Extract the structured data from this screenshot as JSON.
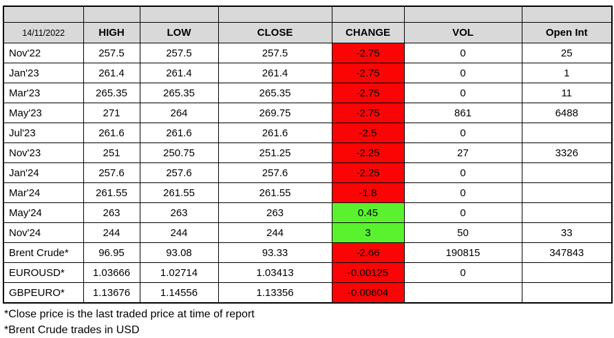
{
  "table": {
    "date": "14/11/2022",
    "columns": [
      "HIGH",
      "LOW",
      "CLOSE",
      "CHANGE",
      "VOL",
      "Open Int"
    ],
    "rows": [
      {
        "label": "Nov'22",
        "high": "257.5",
        "low": "257.5",
        "close": "257.5",
        "change": "-2.75",
        "vol": "0",
        "open_int": "25"
      },
      {
        "label": "Jan'23",
        "high": "261.4",
        "low": "261.4",
        "close": "261.4",
        "change": "-2.75",
        "vol": "0",
        "open_int": "1"
      },
      {
        "label": "Mar'23",
        "high": "265.35",
        "low": "265.35",
        "close": "265.35",
        "change": "-2.75",
        "vol": "0",
        "open_int": "11"
      },
      {
        "label": "May'23",
        "high": "271",
        "low": "264",
        "close": "269.75",
        "change": "-2.75",
        "vol": "861",
        "open_int": "6488"
      },
      {
        "label": "Jul'23",
        "high": "261.6",
        "low": "261.6",
        "close": "261.6",
        "change": "-2.5",
        "vol": "0",
        "open_int": ""
      },
      {
        "label": "Nov'23",
        "high": "251",
        "low": "250.75",
        "close": "251.25",
        "change": "-2.25",
        "vol": "27",
        "open_int": "3326"
      },
      {
        "label": "Jan'24",
        "high": "257.6",
        "low": "257.6",
        "close": "257.6",
        "change": "-2.25",
        "vol": "0",
        "open_int": ""
      },
      {
        "label": "Mar'24",
        "high": "261.55",
        "low": "261.55",
        "close": "261.55",
        "change": "-1.8",
        "vol": "0",
        "open_int": ""
      },
      {
        "label": "May'24",
        "high": "263",
        "low": "263",
        "close": "263",
        "change": "0.45",
        "vol": "0",
        "open_int": ""
      },
      {
        "label": "Nov'24",
        "high": "244",
        "low": "244",
        "close": "244",
        "change": "3",
        "vol": "50",
        "open_int": "33"
      },
      {
        "label": "Brent Crude*",
        "high": "96.95",
        "low": "93.08",
        "close": "93.33",
        "change": "-2.66",
        "vol": "190815",
        "open_int": "347843"
      },
      {
        "label": "EUROUSD*",
        "high": "1.03666",
        "low": "1.02714",
        "close": "1.03413",
        "change": "-0.00125",
        "vol": "0",
        "open_int": ""
      },
      {
        "label": "GBPEURO*",
        "high": "1.13676",
        "low": "1.14556",
        "close": "1.13356",
        "change": "-0.00604",
        "vol": "",
        "open_int": ""
      }
    ],
    "footnotes": [
      "*Close price is the last traded price at time of report",
      "*Brent Crude trades in USD"
    ],
    "colors": {
      "header_bg": "#d9d9d9",
      "negative_bg": "#fa0505",
      "positive_bg": "#5af22f",
      "border": "#000000"
    }
  }
}
